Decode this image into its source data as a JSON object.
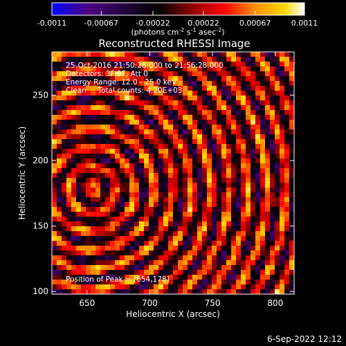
{
  "chart_data": {
    "type": "heatmap",
    "title": "Reconstructed RHESSI Image",
    "xlabel": "Heliocentric X (arcsec)",
    "ylabel": "Heliocentric Y (arcsec)",
    "xlim": [
      622,
      815
    ],
    "ylim": [
      98,
      283
    ],
    "x_ticks": [
      650,
      700,
      750,
      800
    ],
    "y_ticks": [
      100,
      150,
      200,
      250
    ],
    "colorbar": {
      "min": -0.0011,
      "max": 0.0011,
      "tick_labels": [
        "-0.0011",
        "-0.00067",
        "-0.00022",
        "0.00022",
        "0.00067",
        "0.0011"
      ],
      "unit_prefix": "(photons cm",
      "unit_exp1": "-2",
      "unit_mid": " s",
      "unit_exp2": "-1",
      "unit_mid2": " asec",
      "unit_exp3": "-2",
      "unit_suffix": ")",
      "colormap": [
        "#0000ff",
        "#4b0082",
        "#000000",
        "#8b0000",
        "#ff0000",
        "#ff8c00",
        "#ffd700",
        "#ffffff"
      ]
    },
    "annotations": [
      "25-Oct-2016 21:50:28.000 to 21:56:28.000",
      "Detectors: 3F 9F, Att 0",
      "Energy Range: 12.0 - 25.0 keV",
      "Clean     Total counts: 4.20E+03"
    ],
    "peak_label": "Position of Peak = [654,178]",
    "peak": {
      "x": 654,
      "y": 178
    }
  },
  "timestamp": "6-Sep-2022 12:12"
}
